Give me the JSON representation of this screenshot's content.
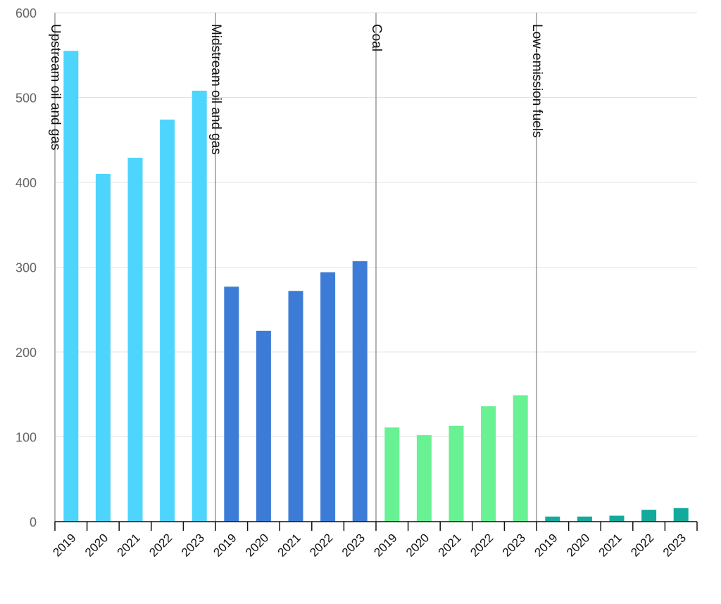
{
  "chart_data": {
    "type": "bar",
    "title": "",
    "xlabel": "",
    "ylabel": "",
    "ylim": [
      0,
      600
    ],
    "yticks": [
      "0",
      "100",
      "200",
      "300",
      "400",
      "500",
      "600"
    ],
    "grid": true,
    "groups": [
      {
        "name": "Upstream oil and gas",
        "color": "#4dd5fe",
        "categories": [
          "2019",
          "2020",
          "2021",
          "2022",
          "2023"
        ],
        "values": [
          555,
          410,
          429,
          474,
          508
        ]
      },
      {
        "name": "Midstream oil and gas",
        "color": "#3d7cd6",
        "categories": [
          "2019",
          "2020",
          "2021",
          "2022",
          "2023"
        ],
        "values": [
          277,
          225,
          272,
          294,
          307
        ]
      },
      {
        "name": "Coal",
        "color": "#68f293",
        "categories": [
          "2019",
          "2020",
          "2021",
          "2022",
          "2023"
        ],
        "values": [
          111,
          102,
          113,
          136,
          149
        ]
      },
      {
        "name": "Low-emission fuels",
        "color": "#12ab9b",
        "categories": [
          "2019",
          "2020",
          "2021",
          "2022",
          "2023"
        ],
        "values": [
          6,
          6,
          7,
          14,
          16
        ]
      }
    ]
  }
}
